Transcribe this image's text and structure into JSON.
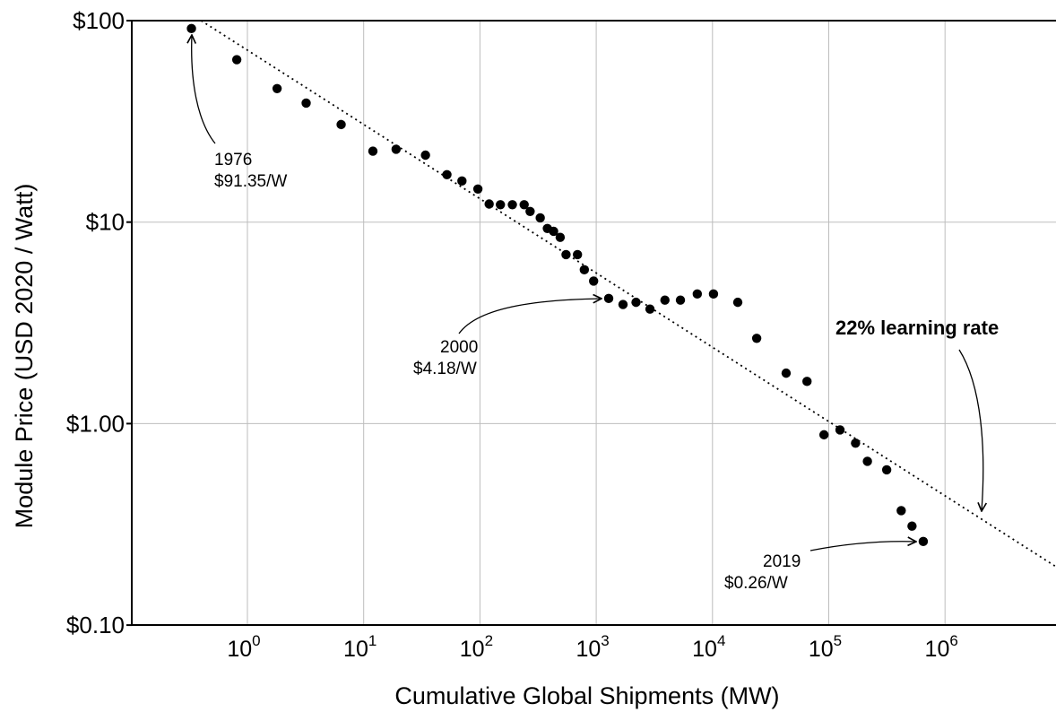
{
  "chart_data": {
    "type": "scatter",
    "xlabel": "Cumulative Global Shipments (MW)",
    "ylabel": "Module Price (USD 2020 / Watt)",
    "x_scale": "log",
    "y_scale": "log",
    "xlim": [
      0.1,
      9000000
    ],
    "ylim": [
      0.1,
      100
    ],
    "grid": true,
    "y_ticks": [
      {
        "value": 100,
        "label": "$100"
      },
      {
        "value": 10,
        "label": "$10"
      },
      {
        "value": 1,
        "label": "$1.00"
      },
      {
        "value": 0.1,
        "label": "$0.10"
      }
    ],
    "x_ticks": [
      {
        "value": 1,
        "base": "10",
        "exp": "0"
      },
      {
        "value": 10,
        "base": "10",
        "exp": "1"
      },
      {
        "value": 100,
        "base": "10",
        "exp": "2"
      },
      {
        "value": 1000,
        "base": "10",
        "exp": "3"
      },
      {
        "value": 10000,
        "base": "10",
        "exp": "4"
      },
      {
        "value": 100000,
        "base": "10",
        "exp": "5"
      },
      {
        "value": 1000000,
        "base": "10",
        "exp": "6"
      }
    ],
    "points": [
      [
        0.33,
        91.35
      ],
      [
        0.81,
        64
      ],
      [
        1.8,
        46
      ],
      [
        3.2,
        39
      ],
      [
        6.4,
        30.5
      ],
      [
        12,
        22.5
      ],
      [
        19,
        23
      ],
      [
        34,
        21.5
      ],
      [
        52,
        17.2
      ],
      [
        70,
        16
      ],
      [
        96,
        14.6
      ],
      [
        120,
        12.3
      ],
      [
        150,
        12.2
      ],
      [
        190,
        12.2
      ],
      [
        240,
        12.2
      ],
      [
        270,
        11.3
      ],
      [
        330,
        10.5
      ],
      [
        380,
        9.3
      ],
      [
        430,
        9.0
      ],
      [
        490,
        8.4
      ],
      [
        550,
        6.9
      ],
      [
        690,
        6.9
      ],
      [
        790,
        5.8
      ],
      [
        950,
        5.1
      ],
      [
        1280,
        4.18
      ],
      [
        1700,
        3.9
      ],
      [
        2200,
        4.0
      ],
      [
        2900,
        3.7
      ],
      [
        3900,
        4.1
      ],
      [
        5300,
        4.1
      ],
      [
        7400,
        4.4
      ],
      [
        10200,
        4.4
      ],
      [
        16500,
        4.0
      ],
      [
        24000,
        2.65
      ],
      [
        43000,
        1.78
      ],
      [
        65000,
        1.62
      ],
      [
        91000,
        0.88
      ],
      [
        125000,
        0.93
      ],
      [
        170000,
        0.8
      ],
      [
        215000,
        0.65
      ],
      [
        315000,
        0.59
      ],
      [
        420000,
        0.37
      ],
      [
        520000,
        0.31
      ],
      [
        650000,
        0.26
      ]
    ],
    "trendline": {
      "label": "22% learning rate",
      "from": [
        0.4,
        100
      ],
      "to": [
        9000000,
        0.195
      ]
    },
    "annotations": [
      {
        "line1": "1976",
        "line2": "$91.35/W",
        "point": [
          0.33,
          91.35
        ]
      },
      {
        "line1": "2000",
        "line2": "$4.18/W",
        "point": [
          1280,
          4.18
        ]
      },
      {
        "line1": "2019",
        "line2": "$0.26/W",
        "point": [
          650000,
          0.26
        ]
      }
    ]
  }
}
